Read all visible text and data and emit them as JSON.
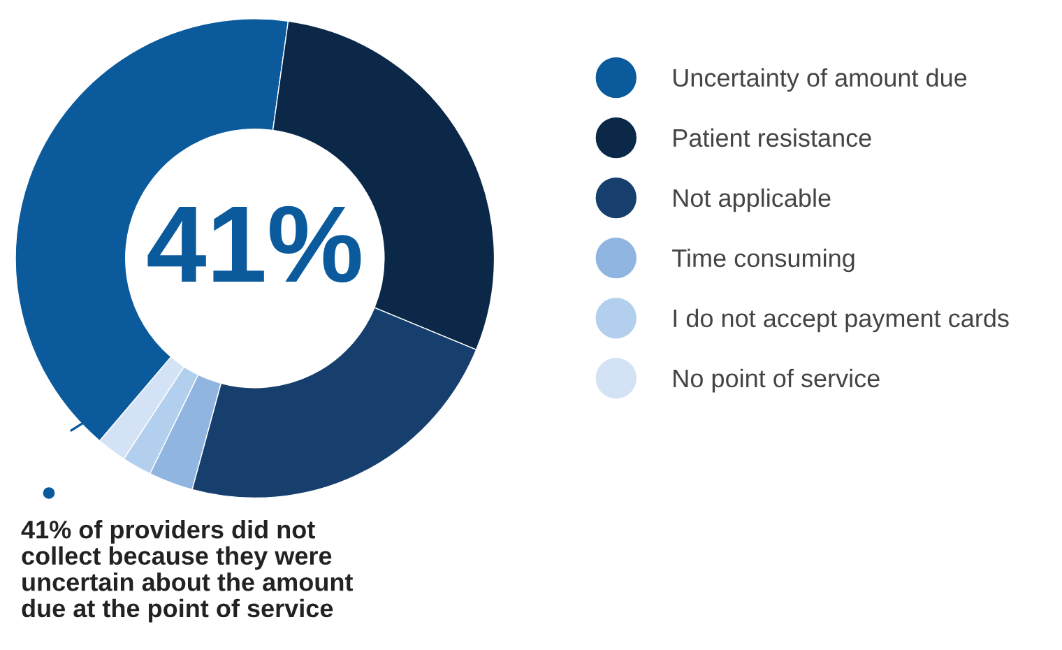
{
  "chart_data": {
    "type": "donut",
    "categories": [
      "Uncertainty of amount due",
      "Patient resistance",
      "Not applicable",
      "Time consuming",
      "I do not accept payment cards",
      "No point of service"
    ],
    "values": [
      41,
      29,
      23,
      3,
      2,
      2
    ],
    "colors": [
      "#0a5a9c",
      "#0b2848",
      "#163f6e",
      "#8fb5e0",
      "#b3cfee",
      "#d3e3f5"
    ],
    "legend": "right",
    "annotations": [
      "41%",
      "41% of providers did not\ncollect because they were\nuncertain about the amount\ndue at the point of service"
    ]
  }
}
